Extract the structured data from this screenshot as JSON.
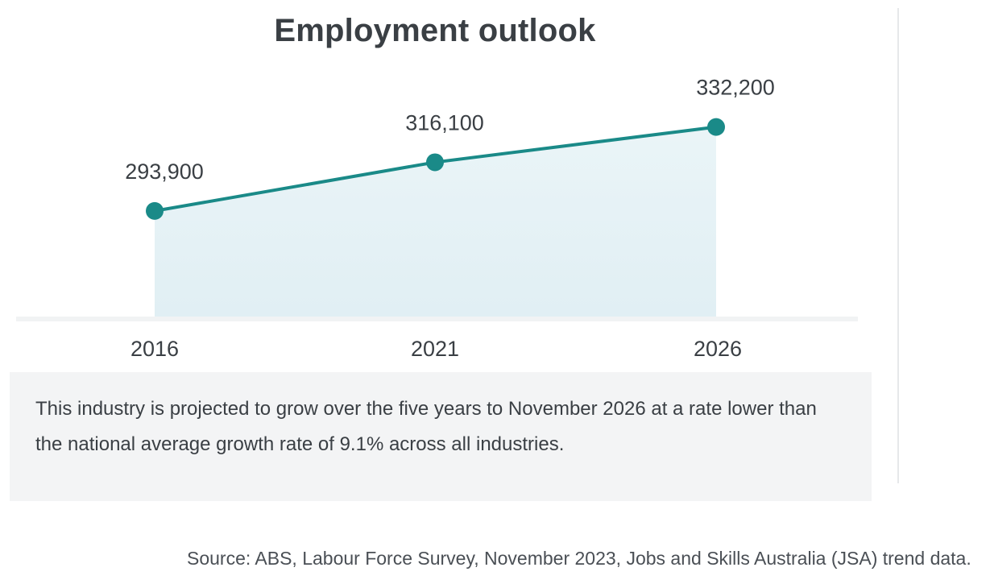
{
  "chart_data": {
    "type": "line",
    "title": "Employment outlook",
    "categories": [
      "2016",
      "2021",
      "2026"
    ],
    "series": [
      {
        "values": [
          293900,
          316100,
          332200
        ]
      }
    ],
    "data_labels": [
      "293,900",
      "316,100",
      "332,200"
    ],
    "ylim": [
      245000,
      335000
    ],
    "grid": false,
    "legend": "none",
    "colors": {
      "line": "#1a8a88",
      "marker": "#1a8a88",
      "area": "#e4f1f5"
    }
  },
  "note": {
    "text": "This industry is projected to grow over the five years to November 2026 at a rate lower than the national average growth rate of 9.1% across all industries."
  },
  "source": {
    "text": "Source: ABS, Labour Force Survey, November 2023, Jobs and Skills Australia (JSA) trend data."
  }
}
